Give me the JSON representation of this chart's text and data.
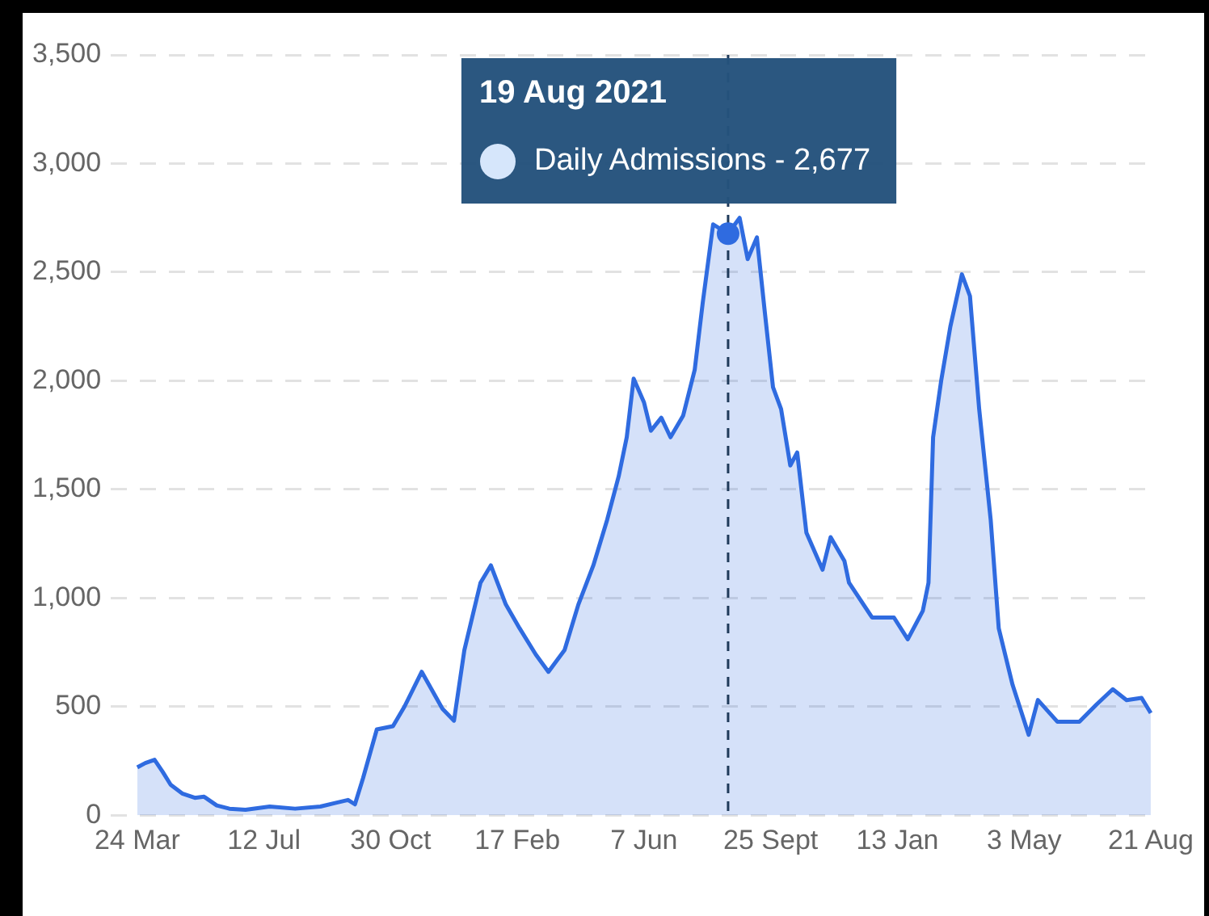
{
  "chart_data": {
    "type": "area",
    "x": [
      "2020-03-24",
      "2020-03-31",
      "2020-04-08",
      "2020-04-15",
      "2020-04-22",
      "2020-05-02",
      "2020-05-13",
      "2020-05-21",
      "2020-06-01",
      "2020-06-12",
      "2020-06-26",
      "2020-07-17",
      "2020-08-08",
      "2020-08-30",
      "2020-09-11",
      "2020-09-23",
      "2020-09-29",
      "2020-10-06",
      "2020-10-18",
      "2020-11-01",
      "2020-11-11",
      "2020-11-26",
      "2020-12-14",
      "2020-12-24",
      "2021-01-02",
      "2021-01-16",
      "2021-01-25",
      "2021-02-07",
      "2021-02-19",
      "2021-03-05",
      "2021-03-16",
      "2021-03-30",
      "2021-04-11",
      "2021-04-24",
      "2021-05-06",
      "2021-05-16",
      "2021-05-23",
      "2021-05-29",
      "2021-06-07",
      "2021-06-13",
      "2021-06-22",
      "2021-06-30",
      "2021-07-11",
      "2021-07-21",
      "2021-07-28",
      "2021-08-06",
      "2021-08-19",
      "2021-08-29",
      "2021-09-05",
      "2021-09-13",
      "2021-09-20",
      "2021-09-27",
      "2021-10-04",
      "2021-10-12",
      "2021-10-18",
      "2021-10-26",
      "2021-11-09",
      "2021-11-16",
      "2021-11-28",
      "2021-12-02",
      "2021-12-22",
      "2022-01-10",
      "2022-01-22",
      "2022-02-04",
      "2022-02-09",
      "2022-02-13",
      "2022-02-20",
      "2022-02-28",
      "2022-03-10",
      "2022-03-17",
      "2022-03-25",
      "2022-04-04",
      "2022-04-11",
      "2022-04-23",
      "2022-05-07",
      "2022-05-15",
      "2022-06-01",
      "2022-06-20",
      "2022-07-05",
      "2022-07-19",
      "2022-07-31",
      "2022-08-13",
      "2022-08-21"
    ],
    "series": [
      {
        "color": "#2f6be0",
        "values": [
          220,
          240,
          255,
          200,
          140,
          100,
          80,
          85,
          45,
          30,
          25,
          40,
          30,
          40,
          55,
          70,
          50,
          170,
          395,
          410,
          500,
          660,
          490,
          435,
          760,
          1070,
          1150,
          970,
          860,
          740,
          660,
          760,
          970,
          1150,
          1360,
          1560,
          1740,
          2010,
          1900,
          1770,
          1830,
          1740,
          1840,
          2050,
          2360,
          2720,
          2677,
          2750,
          2560,
          2660,
          2310,
          1970,
          1870,
          1610,
          1670,
          1300,
          1130,
          1280,
          1170,
          1070,
          910,
          910,
          810,
          940,
          1070,
          1740,
          2000,
          2250,
          2490,
          2390,
          1870,
          1360,
          860,
          600,
          370,
          530,
          430,
          430,
          510,
          580,
          530,
          540,
          470
        ]
      }
    ],
    "xlim": [
      "2020-03-01",
      "2022-08-24"
    ],
    "xticks": [
      {
        "value": "2020-03-24",
        "label": "24 Mar"
      },
      {
        "value": "2020-07-12",
        "label": "12 Jul"
      },
      {
        "value": "2020-10-30",
        "label": "30 Oct"
      },
      {
        "value": "2021-02-17",
        "label": "17 Feb"
      },
      {
        "value": "2021-06-07",
        "label": "7 Jun"
      },
      {
        "value": "2021-09-25",
        "label": "25 Sept"
      },
      {
        "value": "2022-01-13",
        "label": "13 Jan"
      },
      {
        "value": "2022-05-03",
        "label": "3 May"
      },
      {
        "value": "2022-08-21",
        "label": "21 Aug"
      }
    ],
    "ylim": [
      0,
      3500
    ],
    "yticks": [
      0,
      {
        "value": 500,
        "label": "500"
      },
      {
        "value": 1000,
        "label": "1,000"
      },
      {
        "value": 1500,
        "label": "1,500"
      },
      {
        "value": 2000,
        "label": "2,000"
      },
      {
        "value": 2500,
        "label": "2,500"
      },
      {
        "value": 3000,
        "label": "3,000"
      },
      {
        "value": 3500,
        "label": "3,500"
      }
    ],
    "grid": "y",
    "legend": false,
    "marker": "none",
    "line_style": "solid",
    "ref_lines": [
      {
        "axis": "x",
        "value": "2021-08-19",
        "label": "19 Aug 2021",
        "line_style": "dashed",
        "color": "#1f3a5a"
      }
    ],
    "annotations": [
      {
        "text": "Daily Admissions - 2,677",
        "x": "2021-08-19",
        "y": 2677
      }
    ]
  }
}
